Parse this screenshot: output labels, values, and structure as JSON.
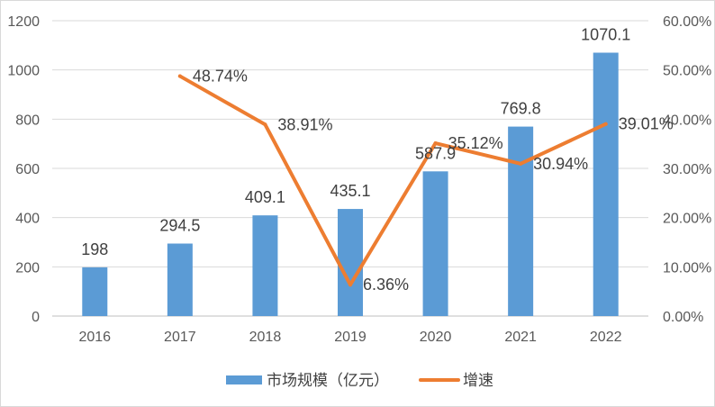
{
  "chart_data": {
    "type": "bar",
    "categories": [
      "2016",
      "2017",
      "2018",
      "2019",
      "2020",
      "2021",
      "2022"
    ],
    "series": [
      {
        "name": "市场规模（亿元）",
        "type": "bar",
        "axis": "left",
        "color": "#5b9bd5",
        "values": [
          198,
          294.5,
          409.1,
          435.1,
          587.9,
          769.8,
          1070.1
        ],
        "labels": [
          "198",
          "294.5",
          "409.1",
          "435.1",
          "587.9",
          "769.8",
          "1070.1"
        ]
      },
      {
        "name": "增速",
        "type": "line",
        "axis": "right",
        "color": "#ed7d31",
        "values": [
          null,
          48.74,
          38.91,
          6.36,
          35.12,
          30.94,
          39.01
        ],
        "labels": [
          null,
          "48.74%",
          "38.91%",
          "6.36%",
          "35.12%",
          "30.94%",
          "39.01%"
        ]
      }
    ],
    "y_left": {
      "min": 0,
      "max": 1200,
      "step": 200,
      "ticks": [
        "0",
        "200",
        "400",
        "600",
        "800",
        "1000",
        "1200"
      ]
    },
    "y_right": {
      "min": 0,
      "max": 60,
      "step": 10,
      "ticks": [
        "0.00%",
        "10.00%",
        "20.00%",
        "30.00%",
        "40.00%",
        "50.00%",
        "60.00%"
      ]
    },
    "grid": "horizontal",
    "legend_position": "bottom"
  }
}
